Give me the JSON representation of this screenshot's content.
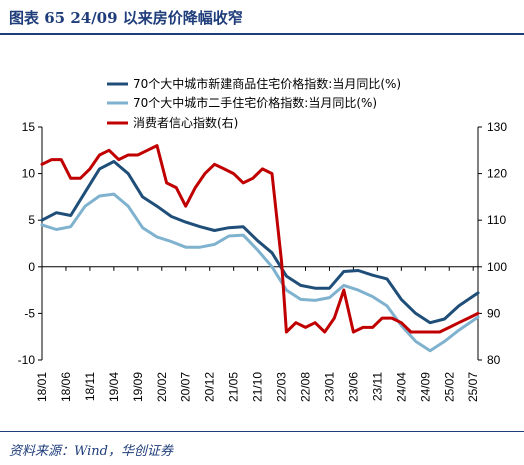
{
  "figure": {
    "title": "图表 65   24/09 以来房价降幅收窄",
    "source": "资料来源：Wind，华创证券"
  },
  "colors": {
    "series_new_home": "#1f4e79",
    "series_second_hand": "#7fb2ce",
    "series_consumer_confidence": "#c00000",
    "title": "#1f3d7a"
  },
  "chart_data": {
    "type": "line",
    "x_ticks": [
      "18/01",
      "18/06",
      "18/11",
      "19/04",
      "19/09",
      "20/02",
      "20/07",
      "20/12",
      "21/05",
      "21/10",
      "22/03",
      "22/08",
      "23/01",
      "23/06",
      "23/11",
      "24/04",
      "24/09",
      "25/02",
      "25/07"
    ],
    "x_range": [
      "2018-01",
      "2025-08"
    ],
    "y_left": {
      "min": -10,
      "max": 15,
      "ticks": [
        -10,
        -5,
        0,
        5,
        10,
        15
      ]
    },
    "y_right": {
      "min": 80,
      "max": 130,
      "ticks": [
        80,
        90,
        100,
        110,
        120,
        130
      ]
    },
    "legend_position": "top",
    "grid": false,
    "series": [
      {
        "name": "70个大中城市新建商品住宅价格指数:当月同比(%)",
        "axis": "left",
        "x": [
          "2018-01",
          "2018-04",
          "2018-07",
          "2018-10",
          "2019-01",
          "2019-04",
          "2019-07",
          "2019-10",
          "2020-01",
          "2020-04",
          "2020-07",
          "2020-10",
          "2021-01",
          "2021-04",
          "2021-07",
          "2021-10",
          "2022-01",
          "2022-04",
          "2022-07",
          "2022-10",
          "2023-01",
          "2023-04",
          "2023-07",
          "2023-10",
          "2024-01",
          "2024-04",
          "2024-07",
          "2024-10",
          "2025-01",
          "2025-04",
          "2025-08"
        ],
        "values": [
          5.0,
          5.8,
          5.5,
          8.0,
          10.5,
          11.3,
          10.0,
          7.5,
          6.5,
          5.4,
          4.8,
          4.3,
          3.9,
          4.2,
          4.3,
          2.8,
          1.5,
          -1.0,
          -2.0,
          -2.3,
          -2.3,
          -0.5,
          -0.4,
          -0.9,
          -1.3,
          -3.5,
          -5.0,
          -6.0,
          -5.6,
          -4.2,
          -2.8
        ]
      },
      {
        "name": "70个大中城市二手住宅价格指数:当月同比(%)",
        "axis": "left",
        "x": [
          "2018-01",
          "2018-04",
          "2018-07",
          "2018-10",
          "2019-01",
          "2019-04",
          "2019-07",
          "2019-10",
          "2020-01",
          "2020-04",
          "2020-07",
          "2020-10",
          "2021-01",
          "2021-04",
          "2021-07",
          "2021-10",
          "2022-01",
          "2022-04",
          "2022-07",
          "2022-10",
          "2023-01",
          "2023-04",
          "2023-07",
          "2023-10",
          "2024-01",
          "2024-04",
          "2024-07",
          "2024-10",
          "2025-01",
          "2025-04",
          "2025-08"
        ],
        "values": [
          4.5,
          4.0,
          4.3,
          6.5,
          7.6,
          7.8,
          6.5,
          4.2,
          3.2,
          2.7,
          2.1,
          2.1,
          2.4,
          3.3,
          3.4,
          1.8,
          0.0,
          -2.5,
          -3.5,
          -3.6,
          -3.3,
          -2.0,
          -2.5,
          -3.2,
          -4.2,
          -6.3,
          -8.0,
          -9.0,
          -8.0,
          -6.8,
          -5.4
        ]
      },
      {
        "name": "消费者信心指数(右)",
        "axis": "right",
        "x": [
          "2018-01",
          "2018-03",
          "2018-05",
          "2018-07",
          "2018-09",
          "2018-11",
          "2019-01",
          "2019-03",
          "2019-05",
          "2019-07",
          "2019-09",
          "2019-11",
          "2020-01",
          "2020-03",
          "2020-05",
          "2020-07",
          "2020-09",
          "2020-11",
          "2021-01",
          "2021-03",
          "2021-05",
          "2021-07",
          "2021-09",
          "2021-11",
          "2022-01",
          "2022-03",
          "2022-04",
          "2022-06",
          "2022-08",
          "2022-10",
          "2022-12",
          "2023-02",
          "2023-04",
          "2023-06",
          "2023-08",
          "2023-10",
          "2023-12",
          "2024-02",
          "2024-04",
          "2024-06",
          "2024-08",
          "2024-10",
          "2024-12",
          "2025-02",
          "2025-04",
          "2025-06",
          "2025-08"
        ],
        "values": [
          122,
          123,
          123,
          119,
          119,
          121,
          124,
          125,
          123,
          124,
          124,
          125,
          126,
          118,
          117,
          113,
          117,
          120,
          122,
          121,
          120,
          118,
          119,
          121,
          120,
          101,
          86,
          88,
          87,
          88,
          86,
          89,
          95,
          86,
          87,
          87,
          89,
          89,
          88,
          86,
          86,
          86,
          86,
          87,
          88,
          89,
          90
        ]
      }
    ]
  }
}
